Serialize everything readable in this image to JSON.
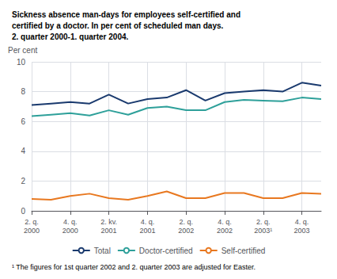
{
  "chart_data": {
    "type": "line",
    "title": "Sickness absence man-days for employees self-certified and\ncertified by a doctor. In per cent of scheduled man days.\n2. quarter 2000-1. quarter 2004.",
    "ylabel": "Per cent",
    "annotations": [
      "¹ The figures for 1st quarter 2002 and 2. quarter 2003 are adjusted for Easter."
    ],
    "categories": [
      "2. q.\n2000",
      null,
      "4. q.\n2000",
      null,
      "2. kv.\n2001",
      null,
      "4. q.\n2001",
      null,
      "2. q.\n2002",
      null,
      "4. q.\n2002",
      null,
      "2. q.\n2003¹",
      null,
      "4. q.\n2003",
      null
    ],
    "series": [
      {
        "name": "Total",
        "color": "#1a3a6e",
        "values": [
          7.1,
          7.2,
          7.3,
          7.2,
          7.8,
          7.2,
          7.5,
          7.6,
          8.1,
          7.4,
          7.9,
          8.0,
          8.1,
          8.0,
          8.6,
          8.4
        ]
      },
      {
        "name": "Doctor-certified",
        "color": "#2ea09a",
        "values": [
          6.35,
          6.45,
          6.55,
          6.4,
          6.75,
          6.45,
          6.9,
          7.0,
          6.75,
          6.75,
          7.3,
          7.45,
          7.4,
          7.35,
          7.6,
          7.5
        ]
      },
      {
        "name": "Self-certified",
        "color": "#e87820",
        "values": [
          0.8,
          0.75,
          1.0,
          1.15,
          0.85,
          0.75,
          1.0,
          1.3,
          0.85,
          0.85,
          1.2,
          1.2,
          0.85,
          0.85,
          1.2,
          1.15
        ]
      }
    ],
    "ylim": [
      0,
      10
    ],
    "yticks": [
      0,
      2,
      4,
      6,
      8,
      10
    ],
    "grid": true,
    "legend": "bottom"
  }
}
